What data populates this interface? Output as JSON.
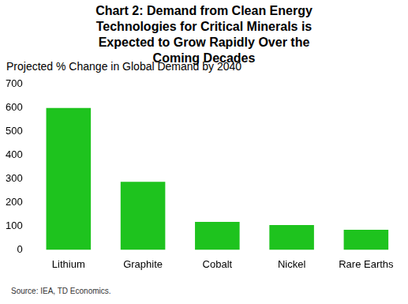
{
  "chart_data": {
    "type": "bar",
    "title": "Chart 2: Demand from Clean Energy Technologies for Critical Minerals is Expected to Grow Rapidly Over the Coming Decades",
    "subtitle": "Projected % Change in Global Demand by 2040",
    "source": "Source: IEA, TD Economics.",
    "categories": [
      "Lithium",
      "Graphite",
      "Cobalt",
      "Nickel",
      "Rare Earths"
    ],
    "values": [
      600,
      288,
      118,
      105,
      85
    ],
    "color": "#1ec31e",
    "ylim": [
      0,
      700
    ],
    "yticks": [
      0,
      100,
      200,
      300,
      400,
      500,
      600,
      700
    ],
    "grid": false
  }
}
